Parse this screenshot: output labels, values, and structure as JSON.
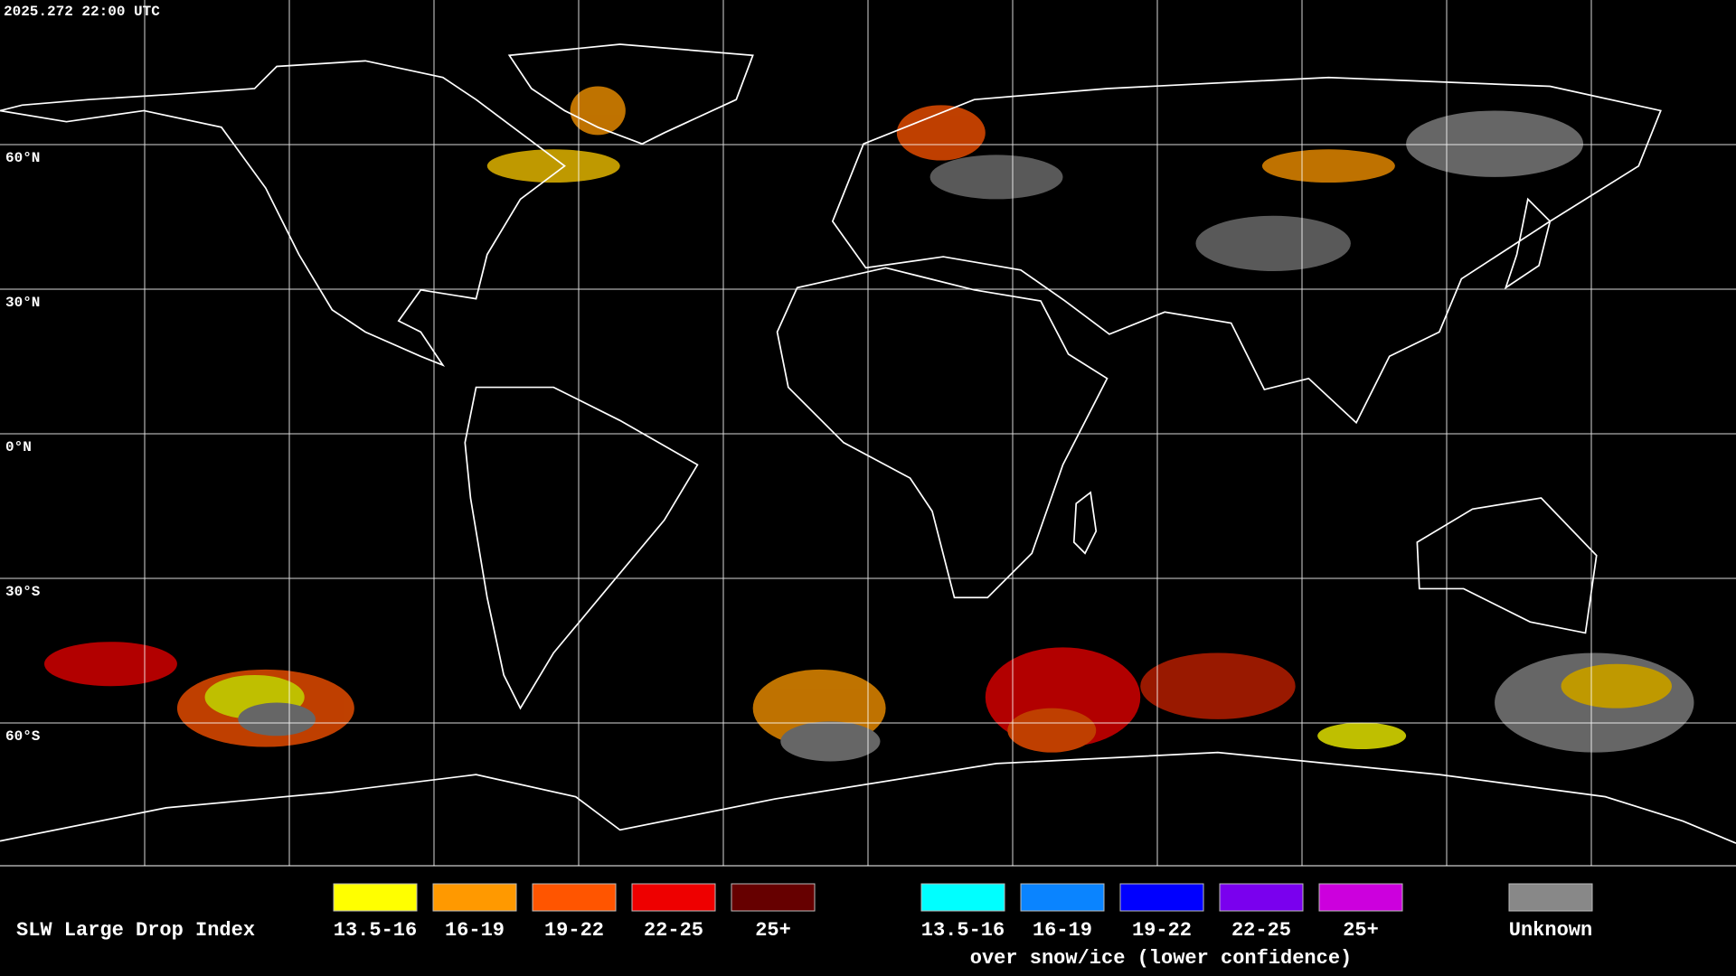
{
  "header": {
    "title": "2025.272 22:00 UTC"
  },
  "map": {
    "latitude_labels": [
      "60°N",
      "30°N",
      "0°N",
      "30°S",
      "60°S"
    ]
  },
  "legend": {
    "title": "SLW Large Drop Index",
    "groups": [
      {
        "items": [
          {
            "label": "13.5-16",
            "color": "#ffff00"
          },
          {
            "label": "16-19",
            "color": "#ff9900"
          },
          {
            "label": "19-22",
            "color": "#ff5500"
          },
          {
            "label": "22-25",
            "color": "#ee0000"
          },
          {
            "label": "25+",
            "color": "#660000"
          }
        ]
      },
      {
        "subtitle": "over snow/ice (lower confidence)",
        "items": [
          {
            "label": "13.5-16",
            "color": "#00ffff"
          },
          {
            "label": "16-19",
            "color": "#0a84ff"
          },
          {
            "label": "19-22",
            "color": "#0000ff"
          },
          {
            "label": "22-25",
            "color": "#7a00ee"
          },
          {
            "label": "25+",
            "color": "#cc00dd"
          }
        ]
      },
      {
        "items": [
          {
            "label": "Unknown",
            "color": "#888888"
          }
        ]
      }
    ]
  }
}
